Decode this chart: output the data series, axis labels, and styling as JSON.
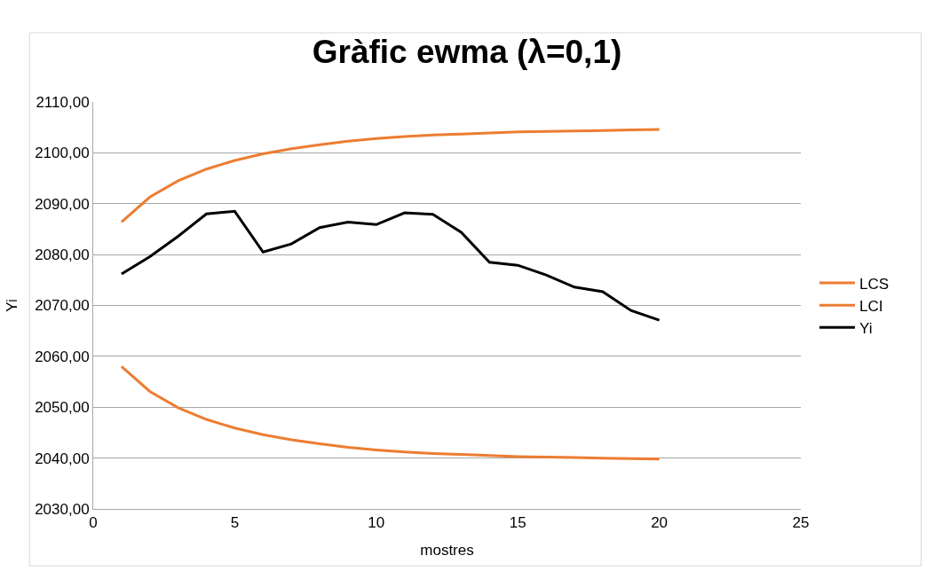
{
  "chart_data": {
    "type": "line",
    "title": "Gràfic ewma (λ=0,1)",
    "xlabel": "mostres",
    "ylabel": "Yi",
    "x": [
      1,
      2,
      3,
      4,
      5,
      6,
      7,
      8,
      9,
      10,
      11,
      12,
      13,
      14,
      15,
      16,
      17,
      18,
      19,
      20
    ],
    "series": [
      {
        "name": "LCS",
        "color": "#ed7d31",
        "values": [
          2086.4,
          2091.3,
          2094.5,
          2096.8,
          2098.5,
          2099.8,
          2100.8,
          2101.6,
          2102.3,
          2102.8,
          2103.2,
          2103.5,
          2103.7,
          2103.9,
          2104.1,
          2104.2,
          2104.3,
          2104.4,
          2104.5,
          2104.6
        ]
      },
      {
        "name": "LCI",
        "color": "#ed7d31",
        "values": [
          2058.0,
          2053.1,
          2049.9,
          2047.6,
          2045.9,
          2044.6,
          2043.6,
          2042.8,
          2042.1,
          2041.6,
          2041.2,
          2040.9,
          2040.7,
          2040.5,
          2040.3,
          2040.2,
          2040.1,
          2040.0,
          2039.9,
          2039.8
        ]
      },
      {
        "name": "Yi",
        "color": "#000000",
        "values": [
          2076.2,
          2079.6,
          2083.6,
          2088.0,
          2088.5,
          2080.5,
          2082.1,
          2085.3,
          2086.4,
          2085.9,
          2088.2,
          2087.9,
          2084.4,
          2078.5,
          2077.9,
          2076.0,
          2073.6,
          2072.7,
          2069.0,
          2067.1
        ]
      }
    ],
    "xlim": [
      0,
      25
    ],
    "xticks": [
      0,
      5,
      10,
      15,
      20,
      25
    ],
    "ylim": [
      2030,
      2110
    ],
    "yticks": [
      {
        "value": 2030,
        "label": "2030,00"
      },
      {
        "value": 2040,
        "label": "2040,00"
      },
      {
        "value": 2050,
        "label": "2050,00"
      },
      {
        "value": 2060,
        "label": "2060,00"
      },
      {
        "value": 2070,
        "label": "2070,00"
      },
      {
        "value": 2080,
        "label": "2080,00"
      },
      {
        "value": 2090,
        "label": "2090,00"
      },
      {
        "value": 2100,
        "label": "2100,00"
      },
      {
        "value": 2110,
        "label": "2110,00"
      }
    ],
    "grid": "y",
    "legend": "right",
    "marker": "none",
    "line_style": "solid"
  }
}
